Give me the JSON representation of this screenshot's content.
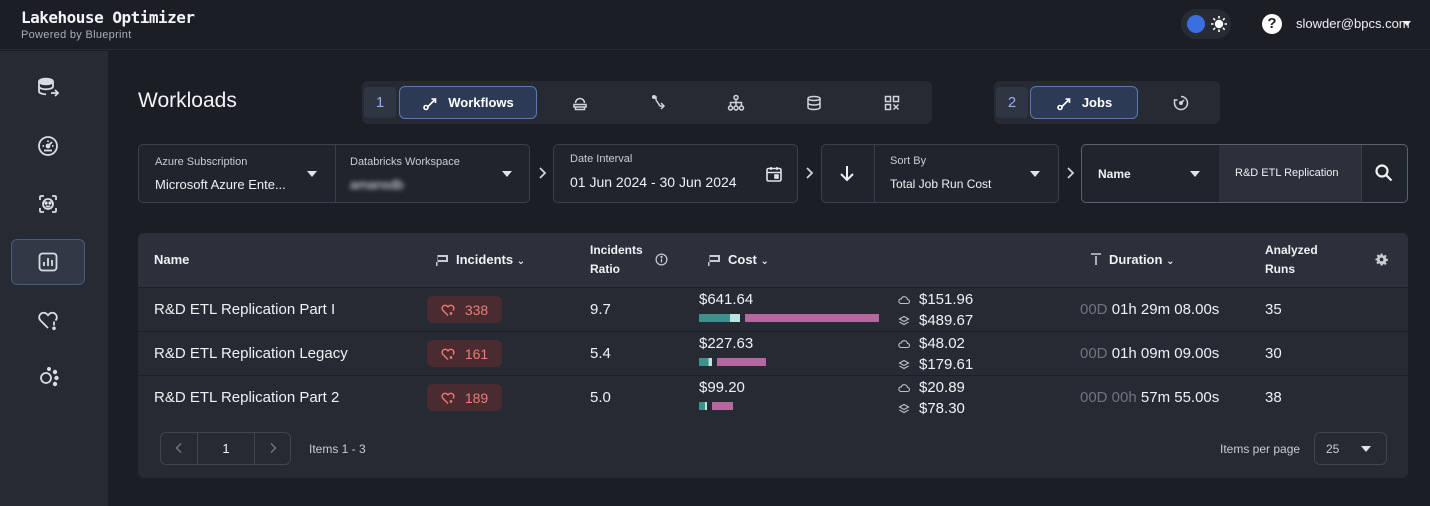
{
  "app": {
    "title": "Lakehouse Optimizer",
    "subtitle": "Powered by Blueprint"
  },
  "header": {
    "user": "slowder@bpcs.com",
    "help": "?"
  },
  "sidebar": {
    "items": [
      {
        "icon": "database-transfer-icon",
        "active": false
      },
      {
        "icon": "gauge-icon",
        "active": false
      },
      {
        "icon": "face-scan-icon",
        "active": false
      },
      {
        "icon": "bar-chart-icon",
        "active": true
      },
      {
        "icon": "heart-alert-icon",
        "active": false
      },
      {
        "icon": "settings-dots-icon",
        "active": false
      }
    ]
  },
  "page": {
    "title": "Workloads"
  },
  "tabs": {
    "group1": {
      "number": "1",
      "active_label": "Workflows",
      "icons": [
        "workflow-icon",
        "cloud-stack-icon",
        "route-icon",
        "hierarchy-icon",
        "database-icon",
        "qr-grid-icon"
      ]
    },
    "group2": {
      "number": "2",
      "active_label": "Jobs",
      "icons": [
        "workflow-icon",
        "cycle-icon"
      ]
    }
  },
  "filters": {
    "subscription": {
      "label": "Azure Subscription",
      "value": "Microsoft Azure Ente..."
    },
    "workspace": {
      "label": "Databricks Workspace",
      "value": "amansdb"
    },
    "date": {
      "label": "Date Interval",
      "value": "01 Jun 2024 - 30 Jun 2024"
    },
    "sort": {
      "label": "Sort By",
      "value": "Total Job Run Cost"
    },
    "search": {
      "field": "Name",
      "value": "R&D ETL Replication"
    }
  },
  "table": {
    "columns": {
      "name": "Name",
      "incidents": "Incidents",
      "ratio_line1": "Incidents",
      "ratio_line2": "Ratio",
      "cost": "Cost",
      "duration": "Duration",
      "runs_line1": "Analyzed",
      "runs_line2": "Runs"
    },
    "rows": [
      {
        "name": "R&D ETL Replication Part I",
        "incidents": "338",
        "ratio": "9.7",
        "cost": "$641.64",
        "cloud_cost": "$151.96",
        "dbu_cost": "$489.67",
        "cloud_frac": 0.237,
        "dbu_frac": 0.763,
        "dur_dim": "00D",
        "dur_main": "01h 29m 08.00s",
        "runs": "35"
      },
      {
        "name": "R&D ETL Replication Legacy",
        "incidents": "161",
        "ratio": "5.4",
        "cost": "$227.63",
        "cloud_cost": "$48.02",
        "dbu_cost": "$179.61",
        "cloud_frac": 0.211,
        "dbu_frac": 0.789,
        "dur_dim": "00D",
        "dur_main": "01h 09m 09.00s",
        "runs": "30"
      },
      {
        "name": "R&D ETL Replication Part 2",
        "incidents": "189",
        "ratio": "5.0",
        "cost": "$99.20",
        "cloud_cost": "$20.89",
        "dbu_cost": "$78.30",
        "cloud_frac": 0.211,
        "dbu_frac": 0.789,
        "dur_dim": "00D 00h",
        "dur_main": "57m 55.00s",
        "runs": "38"
      }
    ]
  },
  "pagination": {
    "page": "1",
    "items": "Items 1 - 3",
    "per_page_label": "Items per page",
    "per_page": "25"
  },
  "colors": {
    "cloud_bar": "#3f8f8c",
    "dbu_bar": "#b5679f",
    "accent": "#3b6fe0",
    "incident_text": "#f07a75"
  }
}
